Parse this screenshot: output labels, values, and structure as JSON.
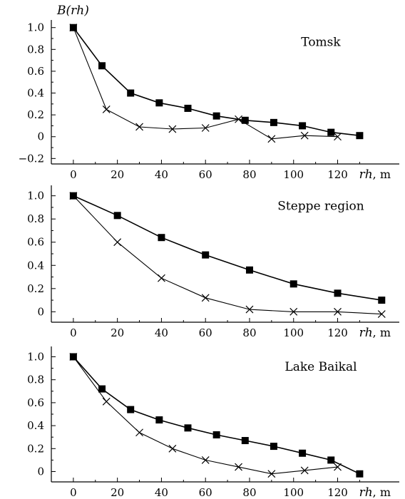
{
  "chart_data": [
    {
      "type": "line",
      "title": "Tomsk",
      "ylabel": "B(rh)",
      "xlabel": "rh",
      "xlabel_unit": ", m",
      "xticks": [
        0,
        20,
        40,
        60,
        80,
        100,
        120
      ],
      "xtick_labels": [
        "0",
        "20",
        "40",
        "60",
        "80",
        "100",
        "120"
      ],
      "yticks": [
        1.0,
        0.8,
        0.6,
        0.4,
        0.2,
        0,
        -0.2
      ],
      "ytick_labels": [
        "1.0",
        "0.8",
        "0.6",
        "0.4",
        "0.2",
        "0",
        "−0.2"
      ],
      "xlim": [
        -10,
        148
      ],
      "ylim": [
        -0.25,
        1.07
      ],
      "series": [
        {
          "marker": "square",
          "x": [
            0,
            13,
            26,
            39,
            52,
            65,
            78,
            91,
            104,
            117,
            130
          ],
          "y": [
            1.0,
            0.65,
            0.4,
            0.31,
            0.26,
            0.19,
            0.15,
            0.13,
            0.1,
            0.04,
            0.01
          ]
        },
        {
          "marker": "cross",
          "x": [
            0,
            15,
            30,
            45,
            60,
            75,
            90,
            105,
            120
          ],
          "y": [
            1.0,
            0.25,
            0.09,
            0.07,
            0.08,
            0.16,
            -0.02,
            0.01,
            0.0
          ]
        }
      ]
    },
    {
      "type": "line",
      "title": "Steppe region",
      "ylabel": "",
      "xlabel": "rh",
      "xlabel_unit": ", m",
      "xticks": [
        0,
        20,
        40,
        60,
        80,
        100,
        120
      ],
      "xtick_labels": [
        "0",
        "20",
        "40",
        "60",
        "80",
        "100",
        "120"
      ],
      "yticks": [
        1.0,
        0.8,
        0.6,
        0.4,
        0.2,
        0
      ],
      "ytick_labels": [
        "1.0",
        "0.8",
        "0.6",
        "0.4",
        "0.2",
        "0"
      ],
      "xlim": [
        -10,
        148
      ],
      "ylim": [
        -0.09,
        1.09
      ],
      "series": [
        {
          "marker": "square",
          "x": [
            0,
            20,
            40,
            60,
            80,
            100,
            120,
            140
          ],
          "y": [
            1.0,
            0.83,
            0.64,
            0.49,
            0.36,
            0.24,
            0.16,
            0.1
          ]
        },
        {
          "marker": "cross",
          "x": [
            0,
            20,
            40,
            60,
            80,
            100,
            120,
            140
          ],
          "y": [
            1.0,
            0.6,
            0.29,
            0.12,
            0.02,
            0.0,
            0.0,
            -0.02
          ]
        }
      ]
    },
    {
      "type": "line",
      "title": "Lake Baikal",
      "ylabel": "",
      "xlabel": "rh",
      "xlabel_unit": ", m",
      "xticks": [
        0,
        20,
        40,
        60,
        80,
        100,
        120
      ],
      "xtick_labels": [
        "0",
        "20",
        "40",
        "60",
        "80",
        "100",
        "120"
      ],
      "yticks": [
        1.0,
        0.8,
        0.6,
        0.4,
        0.2,
        0
      ],
      "ytick_labels": [
        "1.0",
        "0.8",
        "0.6",
        "0.4",
        "0.2",
        "0"
      ],
      "xlim": [
        -10,
        148
      ],
      "ylim": [
        -0.09,
        1.09
      ],
      "series": [
        {
          "marker": "square",
          "x": [
            0,
            13,
            26,
            39,
            52,
            65,
            78,
            91,
            104,
            117,
            130
          ],
          "y": [
            1.0,
            0.72,
            0.54,
            0.45,
            0.38,
            0.32,
            0.27,
            0.22,
            0.16,
            0.1,
            -0.02
          ]
        },
        {
          "marker": "cross",
          "x": [
            0,
            15,
            30,
            45,
            60,
            75,
            90,
            105,
            120
          ],
          "y": [
            1.0,
            0.61,
            0.34,
            0.2,
            0.1,
            0.04,
            -0.02,
            0.01,
            0.04
          ]
        }
      ]
    }
  ]
}
